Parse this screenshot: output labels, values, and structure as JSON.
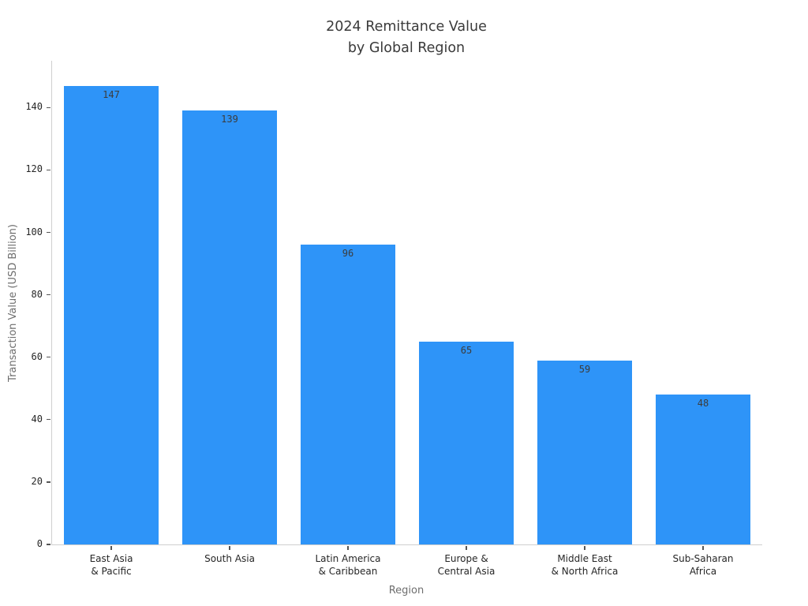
{
  "chart_data": {
    "type": "bar",
    "title": "2024 Remittance Value by Global Region",
    "title_lines": [
      "2024 Remittance Value",
      "by Global Region"
    ],
    "xlabel": "Region",
    "ylabel": "Transaction Value (USD Billion)",
    "categories": [
      "East Asia & Pacific",
      "South Asia",
      "Latin America & Caribbean",
      "Europe & Central Asia",
      "Middle East & North Africa",
      "Sub-Saharan Africa"
    ],
    "category_lines": [
      [
        "East Asia",
        "& Pacific"
      ],
      [
        "South Asia"
      ],
      [
        "Latin America",
        "& Caribbean"
      ],
      [
        "Europe &",
        "Central Asia"
      ],
      [
        "Middle East",
        "& North Africa"
      ],
      [
        "Sub-Saharan",
        "Africa"
      ]
    ],
    "values": [
      147,
      139,
      96,
      65,
      59,
      48
    ],
    "yticks": [
      0,
      20,
      40,
      60,
      80,
      100,
      120,
      140
    ],
    "ylim": [
      0,
      155
    ],
    "grid": false,
    "legend": null,
    "bar_color": "#2E94F8",
    "bar_label_color": "#3c3c3c",
    "tick_label_color": "#262626",
    "axis_label_color": "#6e6e6e",
    "title_color": "#3a3a3a",
    "spine_color": "#cfcfcf"
  }
}
